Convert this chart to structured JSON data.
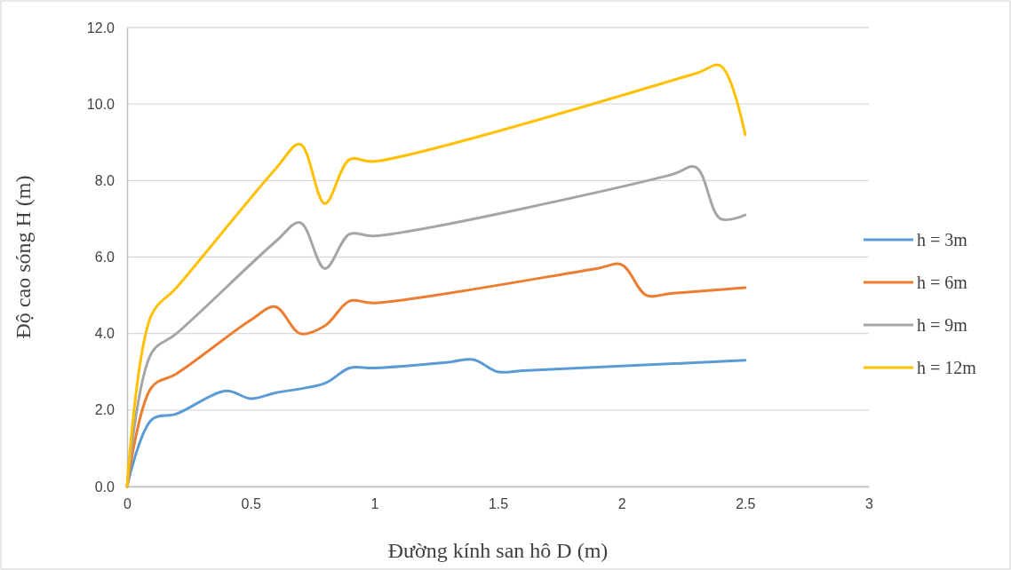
{
  "chart_data": {
    "type": "line",
    "xlabel": "Đường kính san hô D (m)",
    "ylabel": "Độ cao sóng H (m)",
    "xlim": [
      0,
      3
    ],
    "xticks": [
      0,
      0.5,
      1,
      1.5,
      2,
      2.5,
      3
    ],
    "ylim": [
      0,
      12
    ],
    "yticks": [
      {
        "value": 0,
        "label": "0.0"
      },
      {
        "value": 2,
        "label": "2.0"
      },
      {
        "value": 4,
        "label": "4.0"
      },
      {
        "value": 6,
        "label": "6.0"
      },
      {
        "value": 8,
        "label": "8.0"
      },
      {
        "value": 10,
        "label": "10.0"
      },
      {
        "value": 12,
        "label": "12.0"
      }
    ],
    "grid": "y",
    "legend": "right",
    "marker": "none",
    "line_style": "solid",
    "series": [
      {
        "name": "h = 3m",
        "color": "#5b9bd5",
        "x": [
          0,
          0.1,
          0.2,
          0.4,
          0.5,
          0.6,
          0.8,
          0.9,
          1.0,
          1.3,
          1.4,
          1.5,
          1.6,
          2.5
        ],
        "values": [
          0,
          1.75,
          1.9,
          2.5,
          2.3,
          2.45,
          2.7,
          3.1,
          3.1,
          3.25,
          3.32,
          3.0,
          3.03,
          3.3
        ]
      },
      {
        "name": "h = 6m",
        "color": "#ed7d31",
        "x": [
          0,
          0.1,
          0.2,
          0.5,
          0.6,
          0.7,
          0.8,
          0.9,
          1.0,
          1.9,
          2.0,
          2.1,
          2.2,
          2.5
        ],
        "values": [
          0,
          2.6,
          2.95,
          4.35,
          4.7,
          4.0,
          4.2,
          4.85,
          4.8,
          5.7,
          5.8,
          5.0,
          5.05,
          5.2
        ]
      },
      {
        "name": "h = 9m",
        "color": "#a5a5a5",
        "x": [
          0,
          0.1,
          0.2,
          0.6,
          0.7,
          0.8,
          0.9,
          1.0,
          2.2,
          2.3,
          2.4,
          2.5
        ],
        "values": [
          0,
          3.5,
          4.0,
          6.4,
          6.9,
          5.7,
          6.6,
          6.55,
          8.15,
          8.35,
          7.0,
          7.1
        ]
      },
      {
        "name": "h = 12m",
        "color": "#ffc000",
        "x": [
          0,
          0.1,
          0.2,
          0.6,
          0.7,
          0.8,
          0.9,
          1.0,
          2.3,
          2.4,
          2.5
        ],
        "values": [
          0,
          4.5,
          5.2,
          8.3,
          8.95,
          7.4,
          8.55,
          8.5,
          10.8,
          11.0,
          9.2
        ]
      }
    ]
  }
}
